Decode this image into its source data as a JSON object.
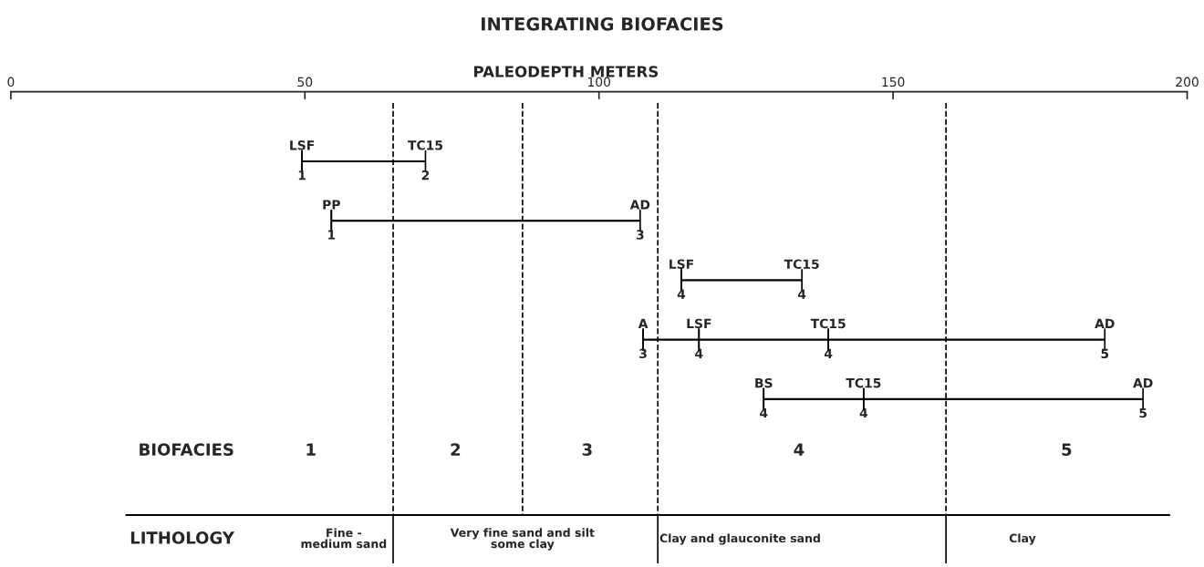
{
  "chart_data": [
    {
      "type": "bar",
      "title": "INTEGRATING BIOFACIES",
      "xlabel": "PALEODEPTH METERS",
      "orientation": "horizontal",
      "categories": [
        null
      ],
      "base": [
        49.5
      ],
      "values": [
        21
      ],
      "color": "#000000",
      "xlim": [
        0,
        200
      ],
      "xticks": [
        0,
        50,
        100,
        150,
        200
      ],
      "tick_labels": "x",
      "grid": false,
      "annotations": [
        "LSF",
        "1",
        "TC15",
        "2"
      ],
      "ref_lines": [
        {
          "axis": "x",
          "value": 65,
          "line_style": "dashed"
        },
        {
          "axis": "x",
          "value": 87,
          "line_style": "dashed"
        },
        {
          "axis": "x",
          "value": 110,
          "line_style": "dashed"
        },
        {
          "axis": "x",
          "value": 159,
          "line_style": "dashed"
        }
      ]
    },
    {
      "type": "bar",
      "orientation": "horizontal",
      "categories": [
        null
      ],
      "base": [
        54.5
      ],
      "values": [
        52.5
      ],
      "color": "#000000",
      "xlim": [
        0,
        200
      ],
      "tick_labels": false,
      "annotations": [
        "PP",
        "1",
        "AD",
        "3"
      ]
    },
    {
      "type": "bar",
      "orientation": "horizontal",
      "categories": [
        null
      ],
      "base": [
        114
      ],
      "values": [
        20.5
      ],
      "color": "#000000",
      "xlim": [
        0,
        200
      ],
      "tick_labels": false,
      "annotations": [
        "LSF",
        "4",
        "TC15",
        "4"
      ]
    },
    {
      "type": "bar",
      "orientation": "horizontal",
      "categories": [
        null
      ],
      "base": [
        107.5
      ],
      "values": [
        9.5
      ],
      "color": "#000000",
      "xlim": [
        0,
        200
      ],
      "tick_labels": false,
      "annotations": [
        "A",
        "3",
        "LSF",
        "4"
      ]
    },
    {
      "type": "bar",
      "orientation": "horizontal",
      "categories": [
        null
      ],
      "base": [
        117
      ],
      "values": [
        22
      ],
      "color": "#000000",
      "xlim": [
        0,
        200
      ],
      "tick_labels": false,
      "annotations": [
        "TC15",
        "4"
      ]
    },
    {
      "type": "bar",
      "orientation": "horizontal",
      "categories": [
        null
      ],
      "base": [
        139
      ],
      "values": [
        47
      ],
      "color": "#000000",
      "xlim": [
        0,
        200
      ],
      "tick_labels": false,
      "annotations": [
        "AD",
        "5"
      ]
    },
    {
      "type": "bar",
      "orientation": "horizontal",
      "categories": [
        null
      ],
      "base": [
        128
      ],
      "values": [
        17
      ],
      "color": "#000000",
      "xlim": [
        0,
        200
      ],
      "tick_labels": false,
      "annotations": [
        "BS",
        "4",
        "TC15",
        "4"
      ]
    },
    {
      "type": "bar",
      "orientation": "horizontal",
      "categories": [
        null
      ],
      "base": [
        145
      ],
      "values": [
        47.5
      ],
      "color": "#000000",
      "xlim": [
        0,
        200
      ],
      "tick_labels": false,
      "annotations": [
        "AD",
        "5"
      ]
    },
    {
      "type": "other",
      "annotations": [
        "BIOFACIES",
        "1",
        "2",
        "3",
        "4",
        "5"
      ]
    },
    {
      "type": "other",
      "annotations": [
        "LITHOLOGY",
        "Fine -\nmedium sand",
        "Very fine sand and silt\nsome clay",
        "Clay and glauconite sand",
        "Clay"
      ]
    }
  ]
}
